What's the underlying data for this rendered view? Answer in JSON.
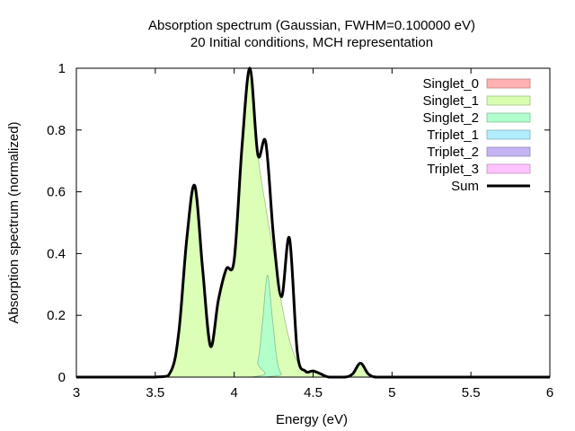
{
  "chart_data": {
    "type": "area",
    "title": "Absorption spectrum (Gaussian, FWHM=0.100000 eV)",
    "subtitle": "20 Initial conditions, MCH representation",
    "xlabel": "Energy (eV)",
    "ylabel": "Absorption spectrum (normalized)",
    "xlim": [
      3,
      6
    ],
    "ylim": [
      0,
      1
    ],
    "x_ticks": [
      "3",
      "3.5",
      "4",
      "4.5",
      "5",
      "5.5",
      "6"
    ],
    "y_ticks": [
      "0",
      "0.2",
      "0.4",
      "0.6",
      "0.8",
      "1"
    ],
    "grid": false,
    "legend_position": "top-right",
    "series": [
      {
        "name": "Singlet_0",
        "color": "#ffb0b0",
        "x": [
          3.0,
          6.0
        ],
        "y": [
          0,
          0
        ]
      },
      {
        "name": "Singlet_1",
        "color": "#d8ffb0",
        "x": [
          3.0,
          3.5,
          3.6,
          3.65,
          3.7,
          3.75,
          3.8,
          3.85,
          3.9,
          3.95,
          4.0,
          4.05,
          4.1,
          4.15,
          4.2,
          4.25,
          4.3,
          4.35,
          4.4,
          4.45,
          4.5,
          4.55,
          4.6,
          4.7,
          4.75,
          4.8,
          4.85,
          4.9,
          5.0,
          6.0
        ],
        "y": [
          0,
          0,
          0.02,
          0.15,
          0.45,
          0.62,
          0.35,
          0.1,
          0.25,
          0.35,
          0.38,
          0.75,
          0.98,
          0.72,
          0.55,
          0.4,
          0.24,
          0.12,
          0.05,
          0.02,
          0.02,
          0.01,
          0,
          0,
          0.01,
          0.045,
          0.01,
          0,
          0,
          0
        ]
      },
      {
        "name": "Singlet_2",
        "color": "#b0ffcc",
        "x": [
          3.0,
          4.1,
          4.15,
          4.18,
          4.21,
          4.24,
          4.27,
          4.3,
          4.35,
          6.0
        ],
        "y": [
          0,
          0,
          0.05,
          0.18,
          0.33,
          0.2,
          0.06,
          0.01,
          0,
          0
        ]
      },
      {
        "name": "Triplet_1",
        "color": "#b0eeff",
        "x": [
          3.0,
          6.0
        ],
        "y": [
          0,
          0
        ]
      },
      {
        "name": "Triplet_2",
        "color": "#c4b4f4",
        "x": [
          3.0,
          6.0
        ],
        "y": [
          0,
          0
        ]
      },
      {
        "name": "Triplet_3",
        "color": "#ffc4ff",
        "x": [
          3.0,
          6.0
        ],
        "y": [
          0,
          0
        ]
      },
      {
        "name": "Sum",
        "color": "#000000",
        "x": [
          3.0,
          3.5,
          3.6,
          3.65,
          3.7,
          3.75,
          3.8,
          3.85,
          3.9,
          3.95,
          4.0,
          4.05,
          4.1,
          4.15,
          4.2,
          4.25,
          4.3,
          4.35,
          4.4,
          4.45,
          4.5,
          4.55,
          4.6,
          4.7,
          4.75,
          4.8,
          4.85,
          4.9,
          5.0,
          6.0
        ],
        "y": [
          0,
          0,
          0.02,
          0.15,
          0.45,
          0.62,
          0.35,
          0.1,
          0.25,
          0.35,
          0.38,
          0.75,
          1.0,
          0.72,
          0.76,
          0.45,
          0.26,
          0.45,
          0.08,
          0.02,
          0.02,
          0.01,
          0,
          0,
          0.01,
          0.045,
          0.01,
          0,
          0,
          0
        ]
      }
    ]
  }
}
